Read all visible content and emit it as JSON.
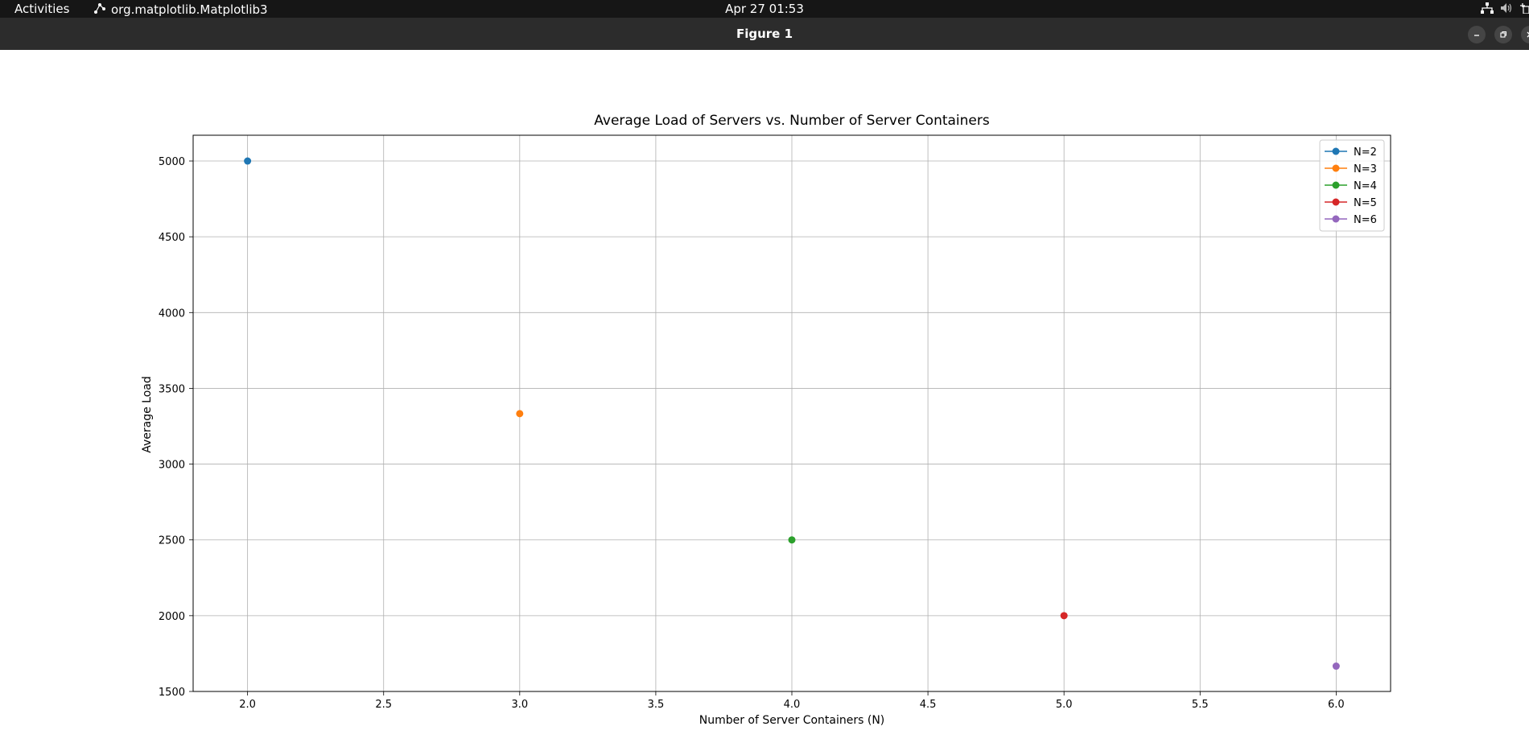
{
  "topbar": {
    "activities": "Activities",
    "app_name": "org.matplotlib.Matplotlib3",
    "clock": "Apr 27  01:53"
  },
  "window": {
    "title": "Figure 1"
  },
  "colors": {
    "topbar_bg": "#161616",
    "titlebar_bg": "#2c2c2c",
    "grid": "#b0b0b0"
  },
  "chart_data": {
    "type": "line",
    "title": "Average Load of Servers vs. Number of Server Containers",
    "xlabel": "Number of Server Containers (N)",
    "ylabel": "Average Load",
    "xlim": [
      1.8,
      6.2
    ],
    "ylim": [
      1500,
      5170
    ],
    "xticks": [
      2.0,
      2.5,
      3.0,
      3.5,
      4.0,
      4.5,
      5.0,
      5.5,
      6.0
    ],
    "xtick_labels": [
      "2.0",
      "2.5",
      "3.0",
      "3.5",
      "4.0",
      "4.5",
      "5.0",
      "5.5",
      "6.0"
    ],
    "yticks": [
      1500,
      2000,
      2500,
      3000,
      3500,
      4000,
      4500,
      5000
    ],
    "ytick_labels": [
      "1500",
      "2000",
      "2500",
      "3000",
      "3500",
      "4000",
      "4500",
      "5000"
    ],
    "grid": true,
    "legend_position": "top-right",
    "series": [
      {
        "name": "N=2",
        "color": "#1f77b4",
        "x": [
          2
        ],
        "y": [
          5000
        ]
      },
      {
        "name": "N=3",
        "color": "#ff7f0e",
        "x": [
          3
        ],
        "y": [
          3333
        ]
      },
      {
        "name": "N=4",
        "color": "#2ca02c",
        "x": [
          4
        ],
        "y": [
          2500
        ]
      },
      {
        "name": "N=5",
        "color": "#d62728",
        "x": [
          5
        ],
        "y": [
          2000
        ]
      },
      {
        "name": "N=6",
        "color": "#9467bd",
        "x": [
          6
        ],
        "y": [
          1667
        ]
      }
    ]
  }
}
